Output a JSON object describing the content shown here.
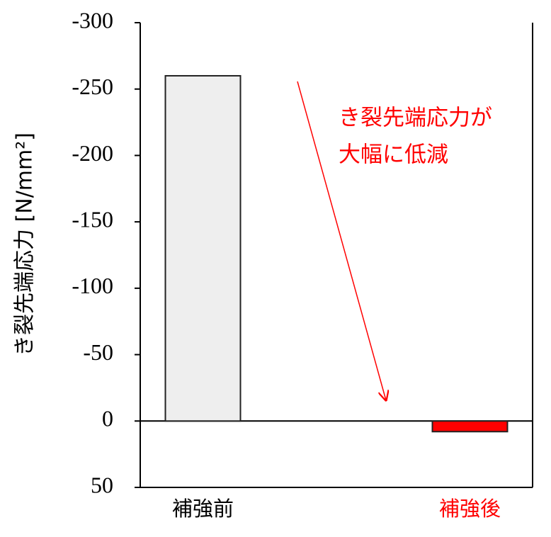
{
  "chart_data": {
    "type": "bar",
    "y_label": "き裂先端応力 [N/mm²]",
    "categories": [
      "補強前",
      "補強後"
    ],
    "category_colors": [
      "#000000",
      "#ff0000"
    ],
    "values": [
      -260,
      8
    ],
    "colors": [
      "#eeeeee",
      "#ff0000"
    ],
    "ylim": [
      -300,
      50
    ],
    "y_inverted": true,
    "yticks": [
      -300,
      -250,
      -200,
      -150,
      -100,
      -50,
      0,
      50
    ],
    "annotation": [
      "き裂先端応力が",
      "大幅に低減"
    ],
    "annotation_color": "#ff0000"
  }
}
